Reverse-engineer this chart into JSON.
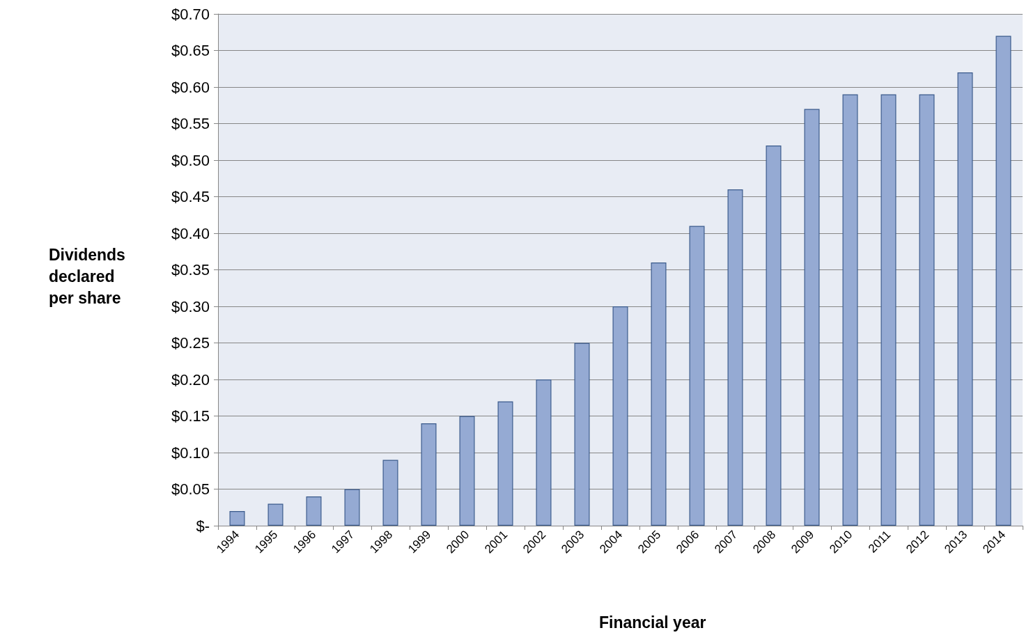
{
  "chart_data": {
    "type": "bar",
    "xlabel": "Financial year",
    "ylabel": "Dividends declared per share",
    "categories": [
      "1994",
      "1995",
      "1996",
      "1997",
      "1998",
      "1999",
      "2000",
      "2001",
      "2002",
      "2003",
      "2004",
      "2005",
      "2006",
      "2007",
      "2008",
      "2009",
      "2010",
      "2011",
      "2012",
      "2013",
      "2014"
    ],
    "values": [
      0.02,
      0.03,
      0.04,
      0.05,
      0.09,
      0.14,
      0.15,
      0.17,
      0.2,
      0.25,
      0.3,
      0.36,
      0.41,
      0.46,
      0.52,
      0.57,
      0.59,
      0.59,
      0.59,
      0.62,
      0.67
    ],
    "color": "#95aad3",
    "ylim": [
      0,
      0.7
    ],
    "yticks": [
      {
        "value": 0,
        "label": "$-"
      },
      {
        "value": 0.05,
        "label": "$0.05"
      },
      {
        "value": 0.1,
        "label": "$0.10"
      },
      {
        "value": 0.15,
        "label": "$0.15"
      },
      {
        "value": 0.2,
        "label": "$0.20"
      },
      {
        "value": 0.25,
        "label": "$0.25"
      },
      {
        "value": 0.3,
        "label": "$0.30"
      },
      {
        "value": 0.35,
        "label": "$0.35"
      },
      {
        "value": 0.4,
        "label": "$0.40"
      },
      {
        "value": 0.45,
        "label": "$0.45"
      },
      {
        "value": 0.5,
        "label": "$0.50"
      },
      {
        "value": 0.55,
        "label": "$0.55"
      },
      {
        "value": 0.6,
        "label": "$0.60"
      },
      {
        "value": 0.65,
        "label": "$0.65"
      },
      {
        "value": 0.7,
        "label": "$0.70"
      }
    ],
    "grid": "y"
  }
}
